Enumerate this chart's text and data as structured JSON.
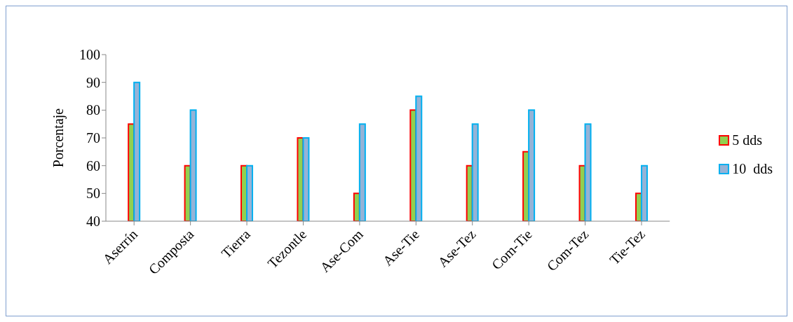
{
  "chart_data": {
    "type": "bar",
    "ylabel": "Porcentaje",
    "categories": [
      "Aserrín",
      "Composta",
      "Tierra",
      "Tezontle",
      "Ase-Com",
      "Ase-Tie",
      "Ase-Tez",
      "Com-Tie",
      "Com-Tez",
      "Tie-Tez"
    ],
    "series": [
      {
        "name": "5 dds",
        "color": "#92d050",
        "values": [
          75,
          60,
          60,
          70,
          50,
          80,
          60,
          65,
          60,
          50
        ]
      },
      {
        "name": "10  dds",
        "color": "#95b3d7",
        "values": [
          90,
          80,
          60,
          70,
          75,
          85,
          75,
          80,
          75,
          60
        ]
      }
    ],
    "ylim": [
      40,
      100
    ],
    "yticks": [
      40,
      50,
      60,
      70,
      80,
      90,
      100
    ],
    "grid": false,
    "legend": "right"
  }
}
